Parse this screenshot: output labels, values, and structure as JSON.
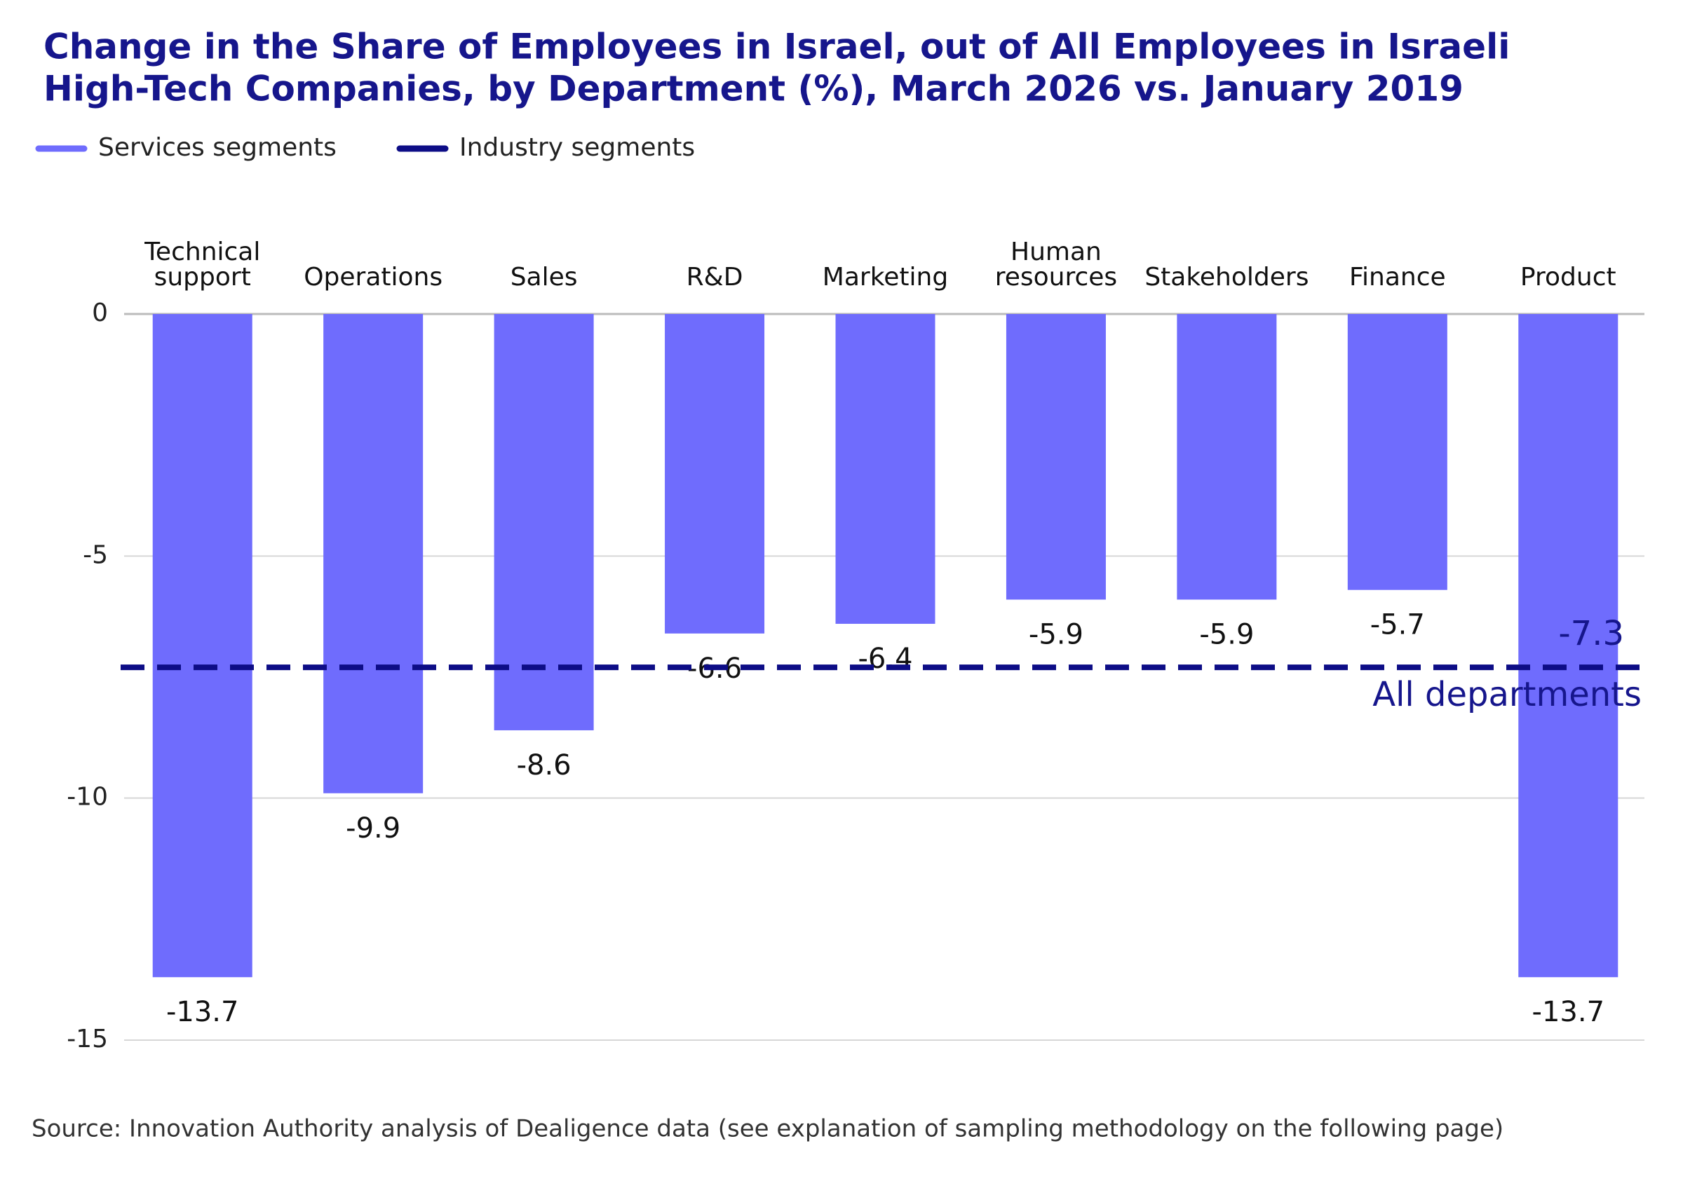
{
  "chart_data": {
    "type": "bar",
    "title": [
      "Change in the Share of Employees in Israel, out of All Employees in Israeli",
      "High-Tech Companies, by Department (%), March 2026 vs. January 2019"
    ],
    "categories": [
      [
        "Technical",
        "support"
      ],
      [
        "Operations"
      ],
      [
        "Sales"
      ],
      [
        "R&D"
      ],
      [
        "Marketing"
      ],
      [
        "Human",
        "resources"
      ],
      [
        "Stakeholders"
      ],
      [
        "Finance"
      ],
      [
        "Product"
      ]
    ],
    "series": [
      {
        "name": "Services segments",
        "color": "#6f6cfd",
        "values": [
          -13.7,
          -9.9,
          -8.6,
          -6.6,
          -6.4,
          -5.9,
          -5.9,
          -5.7,
          -13.7
        ]
      }
    ],
    "average": {
      "name": "Industry segments",
      "color": "#0d0d86",
      "value": -7.3,
      "label": "All departments"
    },
    "ylim": [
      0,
      -15
    ],
    "yticks": [
      0,
      -5,
      -10,
      -15
    ],
    "grid": true,
    "source": "Source: Innovation Authority analysis of Dealigence data (see explanation of sampling methodology on the following page)"
  }
}
